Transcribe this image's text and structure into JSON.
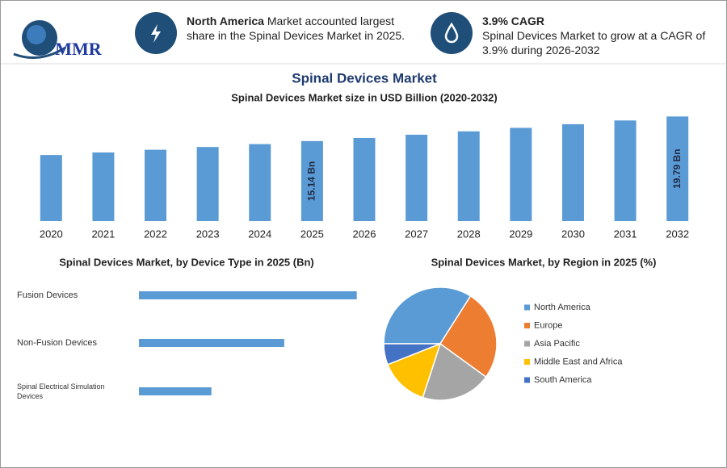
{
  "logo": {
    "text": "MMR"
  },
  "header": {
    "cards": [
      {
        "highlight": "North America",
        "text": "Market accounted largest share in the Spinal Devices Market in 2025."
      },
      {
        "highlight": "3.9% CAGR",
        "text": "Spinal Devices Market to grow at a CAGR of 3.9% during 2026-2032"
      }
    ]
  },
  "title": "Spinal Devices Market",
  "chart_data": [
    {
      "type": "bar",
      "title": "Spinal Devices Market size in USD Billion (2020-2032)",
      "categories": [
        "2020",
        "2021",
        "2022",
        "2023",
        "2024",
        "2025",
        "2026",
        "2027",
        "2028",
        "2029",
        "2030",
        "2031",
        "2032"
      ],
      "values": [
        12.5,
        12.99,
        13.5,
        14.02,
        14.57,
        15.14,
        15.73,
        16.34,
        16.98,
        17.64,
        18.33,
        19.04,
        19.79
      ],
      "value_labels": [
        null,
        null,
        null,
        null,
        null,
        "15.14 Bn",
        null,
        null,
        null,
        null,
        null,
        null,
        "19.79 Bn"
      ],
      "color": "#5b9bd5",
      "ylim": [
        0,
        20
      ]
    },
    {
      "type": "hbar",
      "title": "Spinal Devices Market, by Device Type in 2025 (Bn)",
      "categories": [
        "Fusion Devices",
        "Non-Fusion Devices",
        "Spinal Electrical Simulation Devices"
      ],
      "values": [
        7.57,
        5.05,
        2.52
      ],
      "color": "#5b9bd5",
      "xlim": [
        0,
        8
      ]
    },
    {
      "type": "pie",
      "title": "Spinal Devices Market, by Region in 2025 (%)",
      "series": [
        {
          "name": "North America",
          "color": "#5b9bd5",
          "values": [
            34
          ]
        },
        {
          "name": "Europe",
          "color": "#ed7d31",
          "values": [
            26
          ]
        },
        {
          "name": "Asia Pacific",
          "color": "#a5a5a5",
          "values": [
            20
          ]
        },
        {
          "name": "Middle East and Africa",
          "color": "#ffc000",
          "values": [
            14
          ]
        },
        {
          "name": "South America",
          "color": "#4472c4",
          "values": [
            6
          ]
        }
      ]
    }
  ]
}
